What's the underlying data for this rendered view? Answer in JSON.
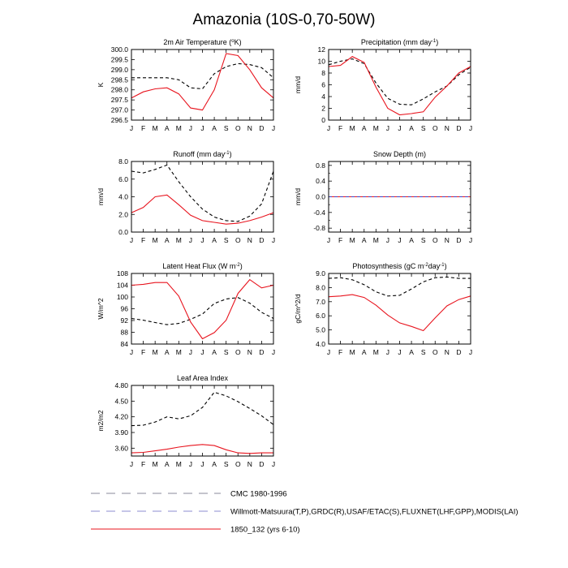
{
  "figure": {
    "title": "Amazonia (10S-0,70-50W)"
  },
  "legend": [
    {
      "label": "CMC 1980-1996",
      "color": "#8a8a9a",
      "style": "long-dash"
    },
    {
      "label": "Willmott-Matsuura(T,P),GRDC(R),USAF/ETAC(S),FLUXNET(LHF,GPP),MODIS(LAI)",
      "color": "#8c8cd2",
      "style": "long-dash"
    },
    {
      "label": "1850_132 (yrs 6-10)",
      "color": "#e8141e",
      "style": "solid"
    }
  ],
  "chart_data": [
    {
      "type": "line",
      "title_text": "2m Air Temperature (",
      "title_sup": "o",
      "title_tail": "K)",
      "ylabel": "K",
      "ylim": [
        296.5,
        300.0
      ],
      "yticks": [
        296.5,
        297.0,
        297.5,
        298.0,
        298.5,
        299.0,
        299.5,
        300.0
      ],
      "ytick_labels": [
        "296.5",
        "297.0",
        "297.5",
        "298.0",
        "298.5",
        "299.0",
        "299.5",
        "300.0"
      ],
      "x": [
        "J",
        "F",
        "M",
        "A",
        "M",
        "J",
        "J",
        "A",
        "S",
        "O",
        "N",
        "D",
        "J"
      ],
      "series": [
        {
          "style": "dashed",
          "color": "#000000",
          "values": [
            298.6,
            298.6,
            298.6,
            298.6,
            298.5,
            298.1,
            298.05,
            298.8,
            299.15,
            299.3,
            299.25,
            299.1,
            298.6
          ]
        },
        {
          "style": "solid",
          "color": "#e8141e",
          "values": [
            297.6,
            297.9,
            298.05,
            298.1,
            297.8,
            297.1,
            297.0,
            298.0,
            299.8,
            299.7,
            299.0,
            298.1,
            297.6
          ]
        }
      ]
    },
    {
      "type": "line",
      "title_text": "Precipitation (mm day",
      "title_sup": "-1",
      "title_tail": ")",
      "ylabel": "mm/d",
      "ylim": [
        0,
        12
      ],
      "yticks": [
        0,
        2,
        4,
        6,
        8,
        10,
        12
      ],
      "ytick_labels": [
        "0",
        "2",
        "4",
        "6",
        "8",
        "10",
        "12"
      ],
      "x": [
        "J",
        "F",
        "M",
        "A",
        "M",
        "J",
        "J",
        "A",
        "S",
        "O",
        "N",
        "D",
        "J"
      ],
      "series": [
        {
          "style": "dashed",
          "color": "#000000",
          "values": [
            9.4,
            10.0,
            10.4,
            9.6,
            6.3,
            3.7,
            2.7,
            2.6,
            3.6,
            4.8,
            5.8,
            7.7,
            9.0
          ]
        },
        {
          "style": "solid",
          "color": "#e8141e",
          "values": [
            9.1,
            9.3,
            10.8,
            9.8,
            5.6,
            2.0,
            0.9,
            1.1,
            1.4,
            3.9,
            5.8,
            8.0,
            9.1
          ]
        }
      ]
    },
    {
      "type": "line",
      "title_text": "Runoff (mm day",
      "title_sup": "-1",
      "title_tail": ")",
      "ylabel": "mm/d",
      "ylim": [
        0,
        8
      ],
      "yticks": [
        0,
        2,
        4,
        6,
        8
      ],
      "ytick_labels": [
        "0.0",
        "2.0",
        "4.0",
        "6.0",
        "8.0"
      ],
      "x": [
        "J",
        "F",
        "M",
        "A",
        "M",
        "J",
        "J",
        "A",
        "S",
        "O",
        "N",
        "D",
        "J"
      ],
      "series": [
        {
          "style": "dashed",
          "color": "#000000",
          "values": [
            6.9,
            6.7,
            7.1,
            7.6,
            5.7,
            4.0,
            2.6,
            1.7,
            1.3,
            1.2,
            1.8,
            3.2,
            6.9
          ]
        },
        {
          "style": "solid",
          "color": "#e8141e",
          "values": [
            2.2,
            2.8,
            4.0,
            4.2,
            3.1,
            1.9,
            1.3,
            1.1,
            0.9,
            1.0,
            1.3,
            1.7,
            2.2
          ]
        }
      ]
    },
    {
      "type": "line",
      "title_text": "Snow Depth (m)",
      "title_sup": "",
      "title_tail": "",
      "ylabel": "mm/d",
      "ylim": [
        -0.9,
        0.9
      ],
      "yticks": [
        -0.8,
        -0.4,
        0.0,
        0.4,
        0.8
      ],
      "ytick_labels": [
        "-0.8",
        "-0.4",
        "0.0",
        "0.4",
        "0.8"
      ],
      "minor_yticks": [
        -0.6,
        -0.2,
        0.2,
        0.6
      ],
      "x": [
        "J",
        "F",
        "M",
        "A",
        "M",
        "J",
        "J",
        "A",
        "S",
        "O",
        "N",
        "D",
        "J"
      ],
      "series": [
        {
          "style": "dashed",
          "color": "#000000",
          "values": [
            0,
            0,
            0,
            0,
            0,
            0,
            0,
            0,
            0,
            0,
            0,
            0,
            0
          ]
        },
        {
          "style": "solid",
          "color": "#e8141e",
          "values": [
            0,
            0,
            0,
            0,
            0,
            0,
            0,
            0,
            0,
            0,
            0,
            0,
            0
          ]
        },
        {
          "style": "dashed",
          "color": "#4040c0",
          "values": [
            0,
            0,
            0,
            0,
            0,
            0,
            0,
            0,
            0,
            0,
            0,
            0,
            0
          ]
        }
      ]
    },
    {
      "type": "line",
      "title_text": "Latent Heat Flux (W m",
      "title_sup": "-2",
      "title_tail": ")",
      "ylabel": "W/m^2",
      "ylim": [
        84,
        108
      ],
      "yticks": [
        84,
        88,
        92,
        96,
        100,
        104,
        108
      ],
      "ytick_labels": [
        "84",
        "88",
        "92",
        "96",
        "100",
        "104",
        "108"
      ],
      "x": [
        "J",
        "F",
        "M",
        "A",
        "M",
        "J",
        "J",
        "A",
        "S",
        "O",
        "N",
        "D",
        "J"
      ],
      "series": [
        {
          "style": "dashed",
          "color": "#000000",
          "values": [
            92.7,
            92.1,
            91.3,
            90.6,
            91.0,
            92.4,
            94.2,
            97.8,
            99.3,
            99.8,
            97.9,
            94.8,
            92.7
          ]
        },
        {
          "style": "solid",
          "color": "#e8141e",
          "values": [
            104.0,
            104.3,
            104.9,
            104.9,
            100.3,
            91.5,
            85.8,
            87.9,
            92.1,
            101.2,
            105.9,
            103.1,
            104.0
          ]
        }
      ]
    },
    {
      "type": "line",
      "title_text": "Photosynthesis (gC m",
      "title_sup": "-2",
      "title_tail": "day",
      "title_sup2": "-1",
      "title_tail2": ")",
      "ylabel": "gC/m^2/d",
      "ylim": [
        4.0,
        9.0
      ],
      "yticks": [
        4.0,
        5.0,
        6.0,
        7.0,
        8.0,
        9.0
      ],
      "ytick_labels": [
        "4.0",
        "5.0",
        "6.0",
        "7.0",
        "8.0",
        "9.0"
      ],
      "x": [
        "J",
        "F",
        "M",
        "A",
        "M",
        "J",
        "J",
        "A",
        "S",
        "O",
        "N",
        "D",
        "J"
      ],
      "series": [
        {
          "style": "dashed",
          "color": "#000000",
          "values": [
            8.65,
            8.7,
            8.55,
            8.2,
            7.7,
            7.4,
            7.45,
            7.9,
            8.4,
            8.7,
            8.75,
            8.65,
            8.65
          ]
        },
        {
          "style": "solid",
          "color": "#e8141e",
          "values": [
            7.35,
            7.4,
            7.5,
            7.3,
            6.75,
            6.05,
            5.5,
            5.25,
            4.95,
            5.85,
            6.7,
            7.15,
            7.4
          ]
        }
      ]
    },
    {
      "type": "line",
      "title_text": "Leaf Area Index",
      "title_sup": "",
      "title_tail": "",
      "ylabel": "m2/m2",
      "ylim": [
        3.45,
        4.8
      ],
      "yticks": [
        3.6,
        3.9,
        4.2,
        4.5,
        4.8
      ],
      "ytick_labels": [
        "3.60",
        "3.90",
        "4.20",
        "4.50",
        "4.80"
      ],
      "x": [
        "J",
        "F",
        "M",
        "A",
        "M",
        "J",
        "J",
        "A",
        "S",
        "O",
        "N",
        "D",
        "J"
      ],
      "series": [
        {
          "style": "dashed",
          "color": "#000000",
          "values": [
            4.03,
            4.04,
            4.1,
            4.2,
            4.16,
            4.22,
            4.38,
            4.67,
            4.6,
            4.49,
            4.36,
            4.22,
            4.05
          ]
        },
        {
          "style": "solid",
          "color": "#e8141e",
          "values": [
            3.51,
            3.52,
            3.55,
            3.58,
            3.62,
            3.65,
            3.67,
            3.65,
            3.57,
            3.51,
            3.5,
            3.51,
            3.51
          ]
        }
      ]
    }
  ]
}
